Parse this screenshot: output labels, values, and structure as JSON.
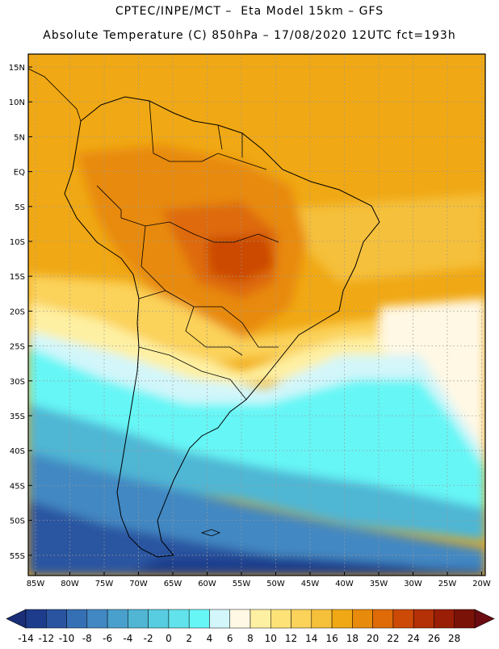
{
  "header": {
    "line1": "CPTEC/INPE/MCT –  Eta Model 15km – GFS",
    "line2": "Absolute Temperature (C) 850hPa – 17/08/2020 12UTC fct=193h"
  },
  "map": {
    "lat_labels": [
      "15N",
      "10N",
      "5N",
      "EQ",
      "5S",
      "10S",
      "15S",
      "20S",
      "25S",
      "30S",
      "35S",
      "40S",
      "45S",
      "50S",
      "55S"
    ],
    "lon_labels": [
      "85W",
      "80W",
      "75W",
      "70W",
      "65W",
      "60W",
      "55W",
      "50W",
      "45W",
      "40W",
      "35W",
      "30W",
      "25W",
      "20W"
    ]
  },
  "colorbar": {
    "labels": [
      "-14",
      "-12",
      "-10",
      "-8",
      "-6",
      "-4",
      "-2",
      "0",
      "2",
      "4",
      "6",
      "8",
      "10",
      "12",
      "14",
      "16",
      "18",
      "20",
      "22",
      "24",
      "26",
      "28"
    ],
    "colors": [
      "#1e3c8c",
      "#2a54a0",
      "#3670b4",
      "#4288c2",
      "#4aa0cc",
      "#50b6d4",
      "#58cce0",
      "#62e2ea",
      "#66f6f6",
      "#d2f6fa",
      "#fff8e4",
      "#fef0a2",
      "#fde278",
      "#fbd25a",
      "#f5c03a",
      "#f0a814",
      "#e88a0c",
      "#de6a08",
      "#cc4a06",
      "#b43006",
      "#9a1e06",
      "#7a1208"
    ]
  }
}
